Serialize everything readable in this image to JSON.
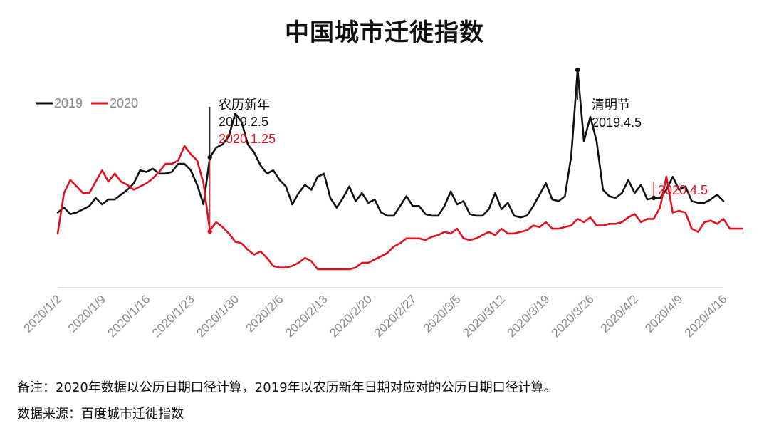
{
  "chart_data": {
    "type": "line",
    "title": "中国城市迁徙指数",
    "xlabel": "",
    "ylabel": "",
    "ylim": [
      0,
      12
    ],
    "grid": false,
    "legend_position": "top-left",
    "x_ticks": [
      "2020/1/2",
      "2020/1/9",
      "2020/1/16",
      "2020/1/23",
      "2020/1/30",
      "2020/2/6",
      "2020/2/13",
      "2020/2/20",
      "2020/2/27",
      "2020/3/5",
      "2020/3/12",
      "2020/3/19",
      "2020/3/26",
      "2020/4/2",
      "2020/4/9",
      "2020/4/16"
    ],
    "series": [
      {
        "name": "2019",
        "color": "#111111",
        "values": [
          4.6,
          4.9,
          4.5,
          4.6,
          4.8,
          5.0,
          5.5,
          5.1,
          5.4,
          5.4,
          5.7,
          6.0,
          6.4,
          7.2,
          7.1,
          7.3,
          7.0,
          7.0,
          7.1,
          7.6,
          7.6,
          7.2,
          6.3,
          5.1,
          8.0,
          8.6,
          8.8,
          9.3,
          10.7,
          10.2,
          8.8,
          8.3,
          7.5,
          7.0,
          7.2,
          6.6,
          6.2,
          5.1,
          5.8,
          6.3,
          6.0,
          6.8,
          7.0,
          5.5,
          4.9,
          5.5,
          6.2,
          5.3,
          5.8,
          5.2,
          5.4,
          4.6,
          4.4,
          4.4,
          5.0,
          5.6,
          5.0,
          5.0,
          4.5,
          4.4,
          4.4,
          5.0,
          5.9,
          5.1,
          5.3,
          4.5,
          4.4,
          4.4,
          4.8,
          5.8,
          4.8,
          5.2,
          4.4,
          4.3,
          4.4,
          5.0,
          5.7,
          6.4,
          5.4,
          5.3,
          5.6,
          8.1,
          13.4,
          9.0,
          10.5,
          9.0,
          6.0,
          5.6,
          5.5,
          5.8,
          6.6,
          5.8,
          6.3,
          5.4,
          5.5,
          5.5,
          6.0,
          6.8,
          6.0,
          6.2,
          5.3,
          5.2,
          5.2,
          5.4,
          5.7,
          5.3
        ]
      },
      {
        "name": "2020",
        "color": "#e0101e",
        "values": [
          3.3,
          5.8,
          6.6,
          6.2,
          5.8,
          5.8,
          6.5,
          7.2,
          6.5,
          7.0,
          6.5,
          6.3,
          6.0,
          6.2,
          6.4,
          6.7,
          7.1,
          7.6,
          7.6,
          7.8,
          8.7,
          8.2,
          7.8,
          6.4,
          3.5,
          4.0,
          3.7,
          3.3,
          2.8,
          2.7,
          2.3,
          2.0,
          2.2,
          1.8,
          1.3,
          1.2,
          1.2,
          1.3,
          1.5,
          1.8,
          1.6,
          1.1,
          1.1,
          1.1,
          1.1,
          1.1,
          1.1,
          1.2,
          1.5,
          1.5,
          1.7,
          1.9,
          2.1,
          2.5,
          2.7,
          3.0,
          3.0,
          3.0,
          2.9,
          3.1,
          3.2,
          3.4,
          3.3,
          3.6,
          3.0,
          2.9,
          3.0,
          3.2,
          3.4,
          3.2,
          3.6,
          3.3,
          3.3,
          3.4,
          3.5,
          3.8,
          3.7,
          4.0,
          3.6,
          3.6,
          3.7,
          3.8,
          4.2,
          4.0,
          4.3,
          3.8,
          3.8,
          3.9,
          3.9,
          4.0,
          4.3,
          4.5,
          4.0,
          4.2,
          4.2,
          4.9,
          6.8,
          4.6,
          4.7,
          4.6,
          3.6,
          3.4,
          4.0,
          4.1,
          3.9,
          4.2,
          3.6,
          3.6,
          3.6
        ]
      }
    ],
    "annotations": [
      {
        "lines": [
          "农历新年",
          "2019.2.5"
        ],
        "extra_line": "2020.1.25",
        "series_index": 0,
        "point_index": 24
      },
      {
        "lines": [
          "清明节",
          "2019.4.5"
        ],
        "series_index": 0,
        "point_index": 82
      },
      {
        "lines": [
          "2020.4.5"
        ],
        "series_index": 1,
        "point_index": 94
      }
    ]
  },
  "footnotes": {
    "note": "备注：2020年数据以公历日期口径计算，2019年以农历新年日期对应对的公历日期口径计算。",
    "source": "数据来源：百度城市迁徙指数"
  }
}
